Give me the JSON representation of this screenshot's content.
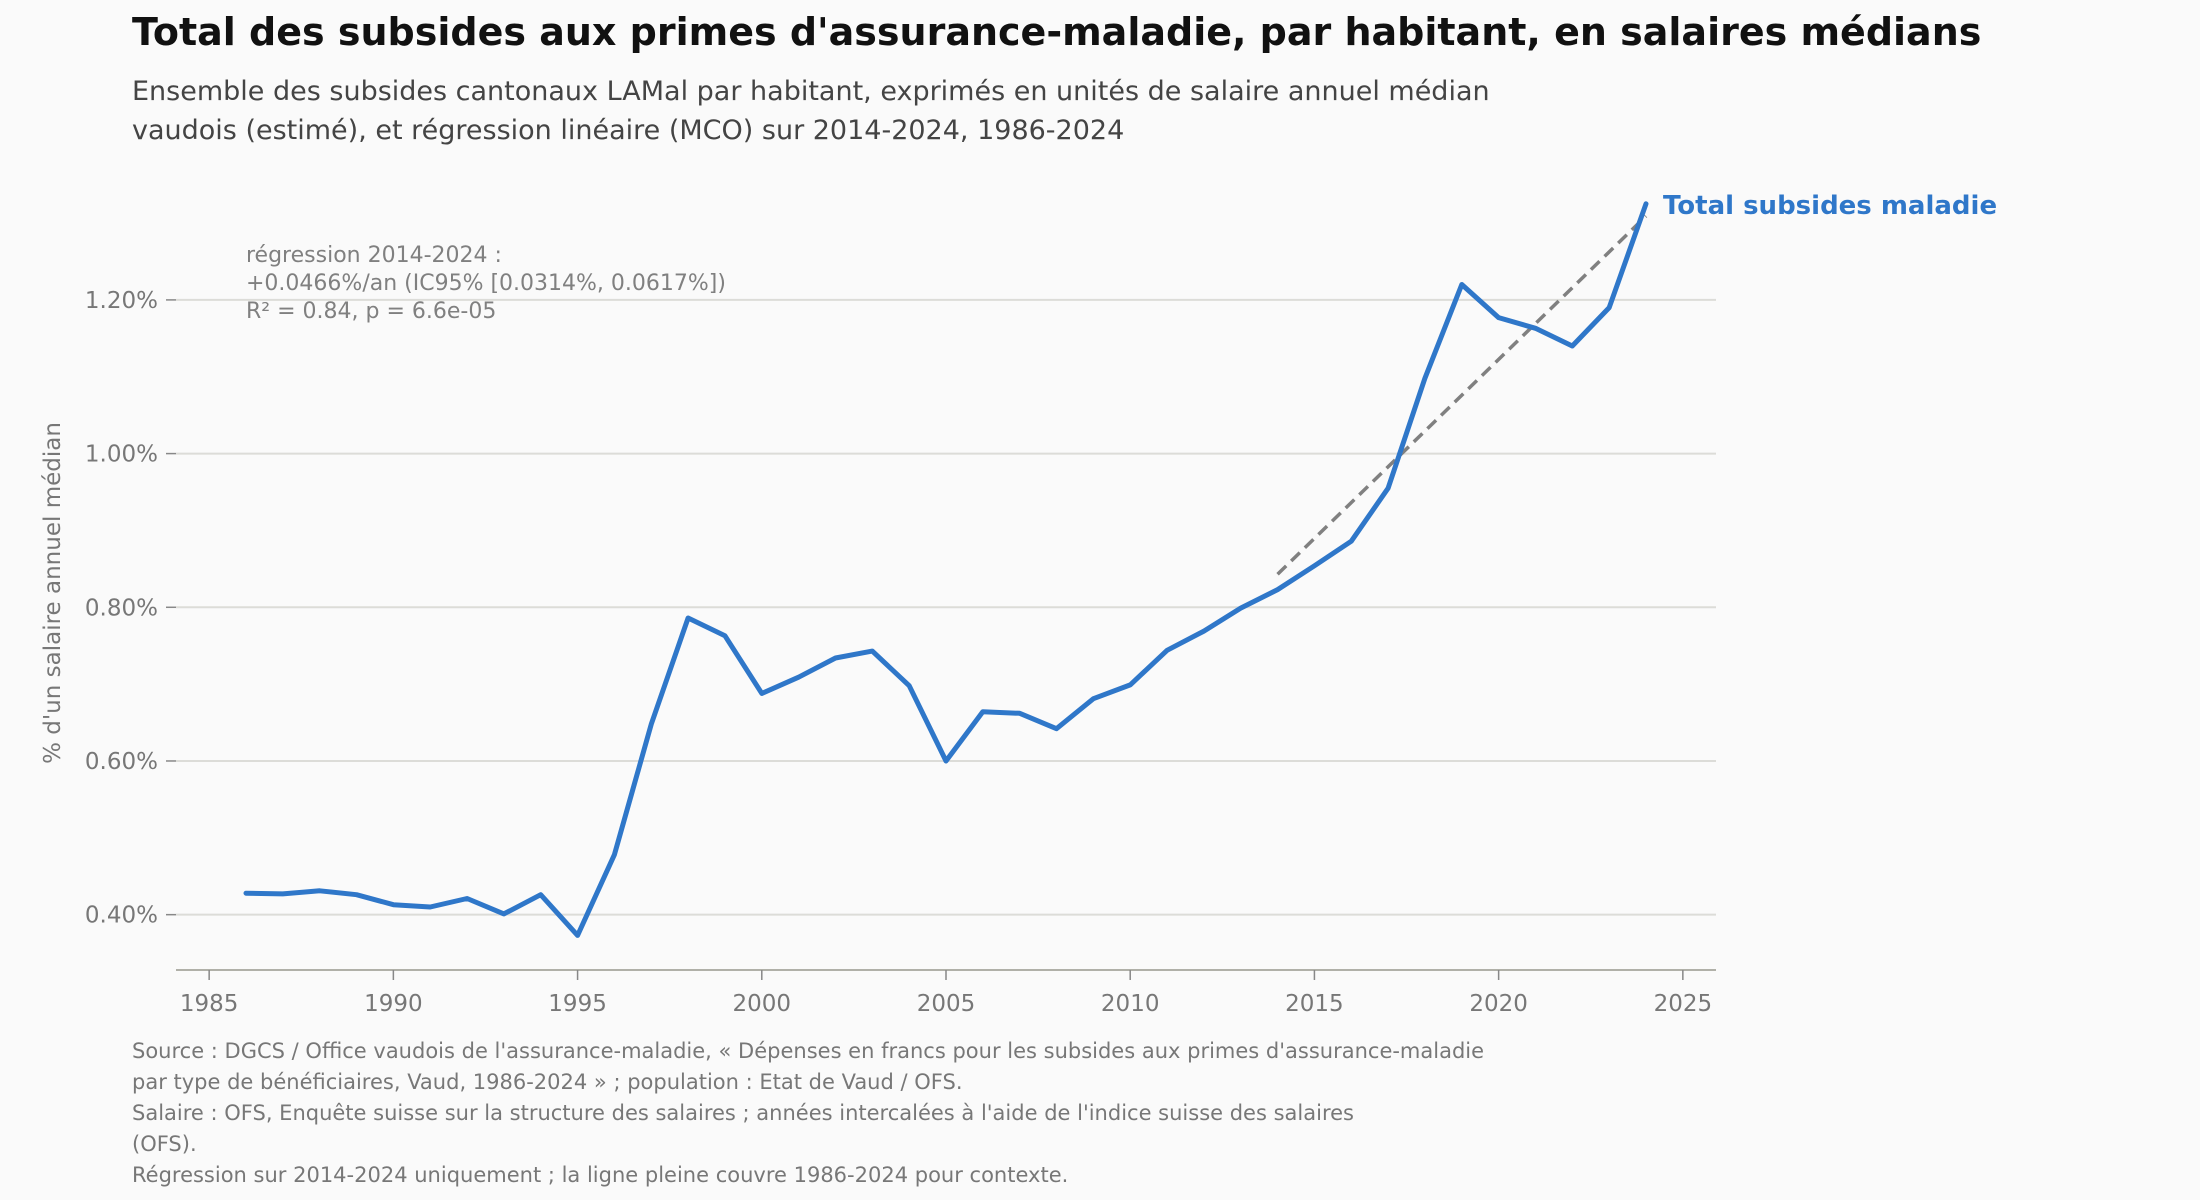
{
  "title": "Total des subsides aux primes d'assurance-maladie, par habitant, en salaires médians",
  "subtitle": [
    "Ensemble des subsides cantonaux LAMal par habitant, exprimés en unités de salaire annuel médian",
    "vaudois (estimé), et régression linéaire (MCO) sur 2014-2024, 1986-2024"
  ],
  "source": [
    "Source : DGCS / Office vaudois de l'assurance-maladie, « Dépenses en francs pour les subsides aux primes d'assurance-maladie",
    "par type de bénéficiaires, Vaud, 1986-2024 » ; population : Etat de Vaud / OFS.",
    "Salaire : OFS, Enquête suisse sur la structure des salaires ; années intercalées à l'aide de l'indice suisse des salaires",
    "(OFS).",
    "Régression sur 2014-2024 uniquement ; la ligne pleine couvre 1986-2024 pour contexte."
  ],
  "chart_data": {
    "type": "line",
    "ylabel": "% d'un salaire annuel médian",
    "xlabel": "",
    "xlim": [
      1984.1,
      2025.9
    ],
    "ylim": [
      0.328,
      1.33
    ],
    "x_ticks": [
      1985,
      1990,
      1995,
      2000,
      2005,
      2010,
      2015,
      2020,
      2025
    ],
    "y_ticks": [
      0.4,
      0.6,
      0.8,
      1.0,
      1.2
    ],
    "y_tick_labels": [
      "0.40%",
      "0.60%",
      "0.80%",
      "1.00%",
      "1.20%"
    ],
    "grid": "horizontal",
    "series": [
      {
        "name": "Total subsides maladie",
        "color": "#2f77c9",
        "x": [
          1986,
          1987,
          1988,
          1989,
          1990,
          1991,
          1992,
          1993,
          1994,
          1995,
          1996,
          1997,
          1998,
          1999,
          2000,
          2001,
          2002,
          2003,
          2004,
          2005,
          2006,
          2007,
          2008,
          2009,
          2010,
          2011,
          2012,
          2013,
          2014,
          2015,
          2016,
          2017,
          2018,
          2019,
          2020,
          2021,
          2022,
          2023,
          2024
        ],
        "values": [
          0.428,
          0.427,
          0.431,
          0.426,
          0.413,
          0.41,
          0.421,
          0.401,
          0.426,
          0.373,
          0.478,
          0.648,
          0.786,
          0.763,
          0.688,
          0.709,
          0.734,
          0.743,
          0.698,
          0.6,
          0.664,
          0.662,
          0.642,
          0.681,
          0.699,
          0.744,
          0.769,
          0.799,
          0.823,
          0.854,
          0.886,
          0.955,
          1.098,
          1.22,
          1.177,
          1.163,
          1.14,
          1.19,
          1.325
        ]
      }
    ],
    "regression": {
      "x": [
        2014,
        2024
      ],
      "values": [
        0.843,
        1.309
      ],
      "color": "#808080",
      "style": "dashed"
    },
    "annotation": [
      "régression 2014-2024 :",
      "+0.0466%/an (IC95% [0.0314%, 0.0617%])",
      "R² = 0.84, p = 6.6e-05"
    ]
  }
}
